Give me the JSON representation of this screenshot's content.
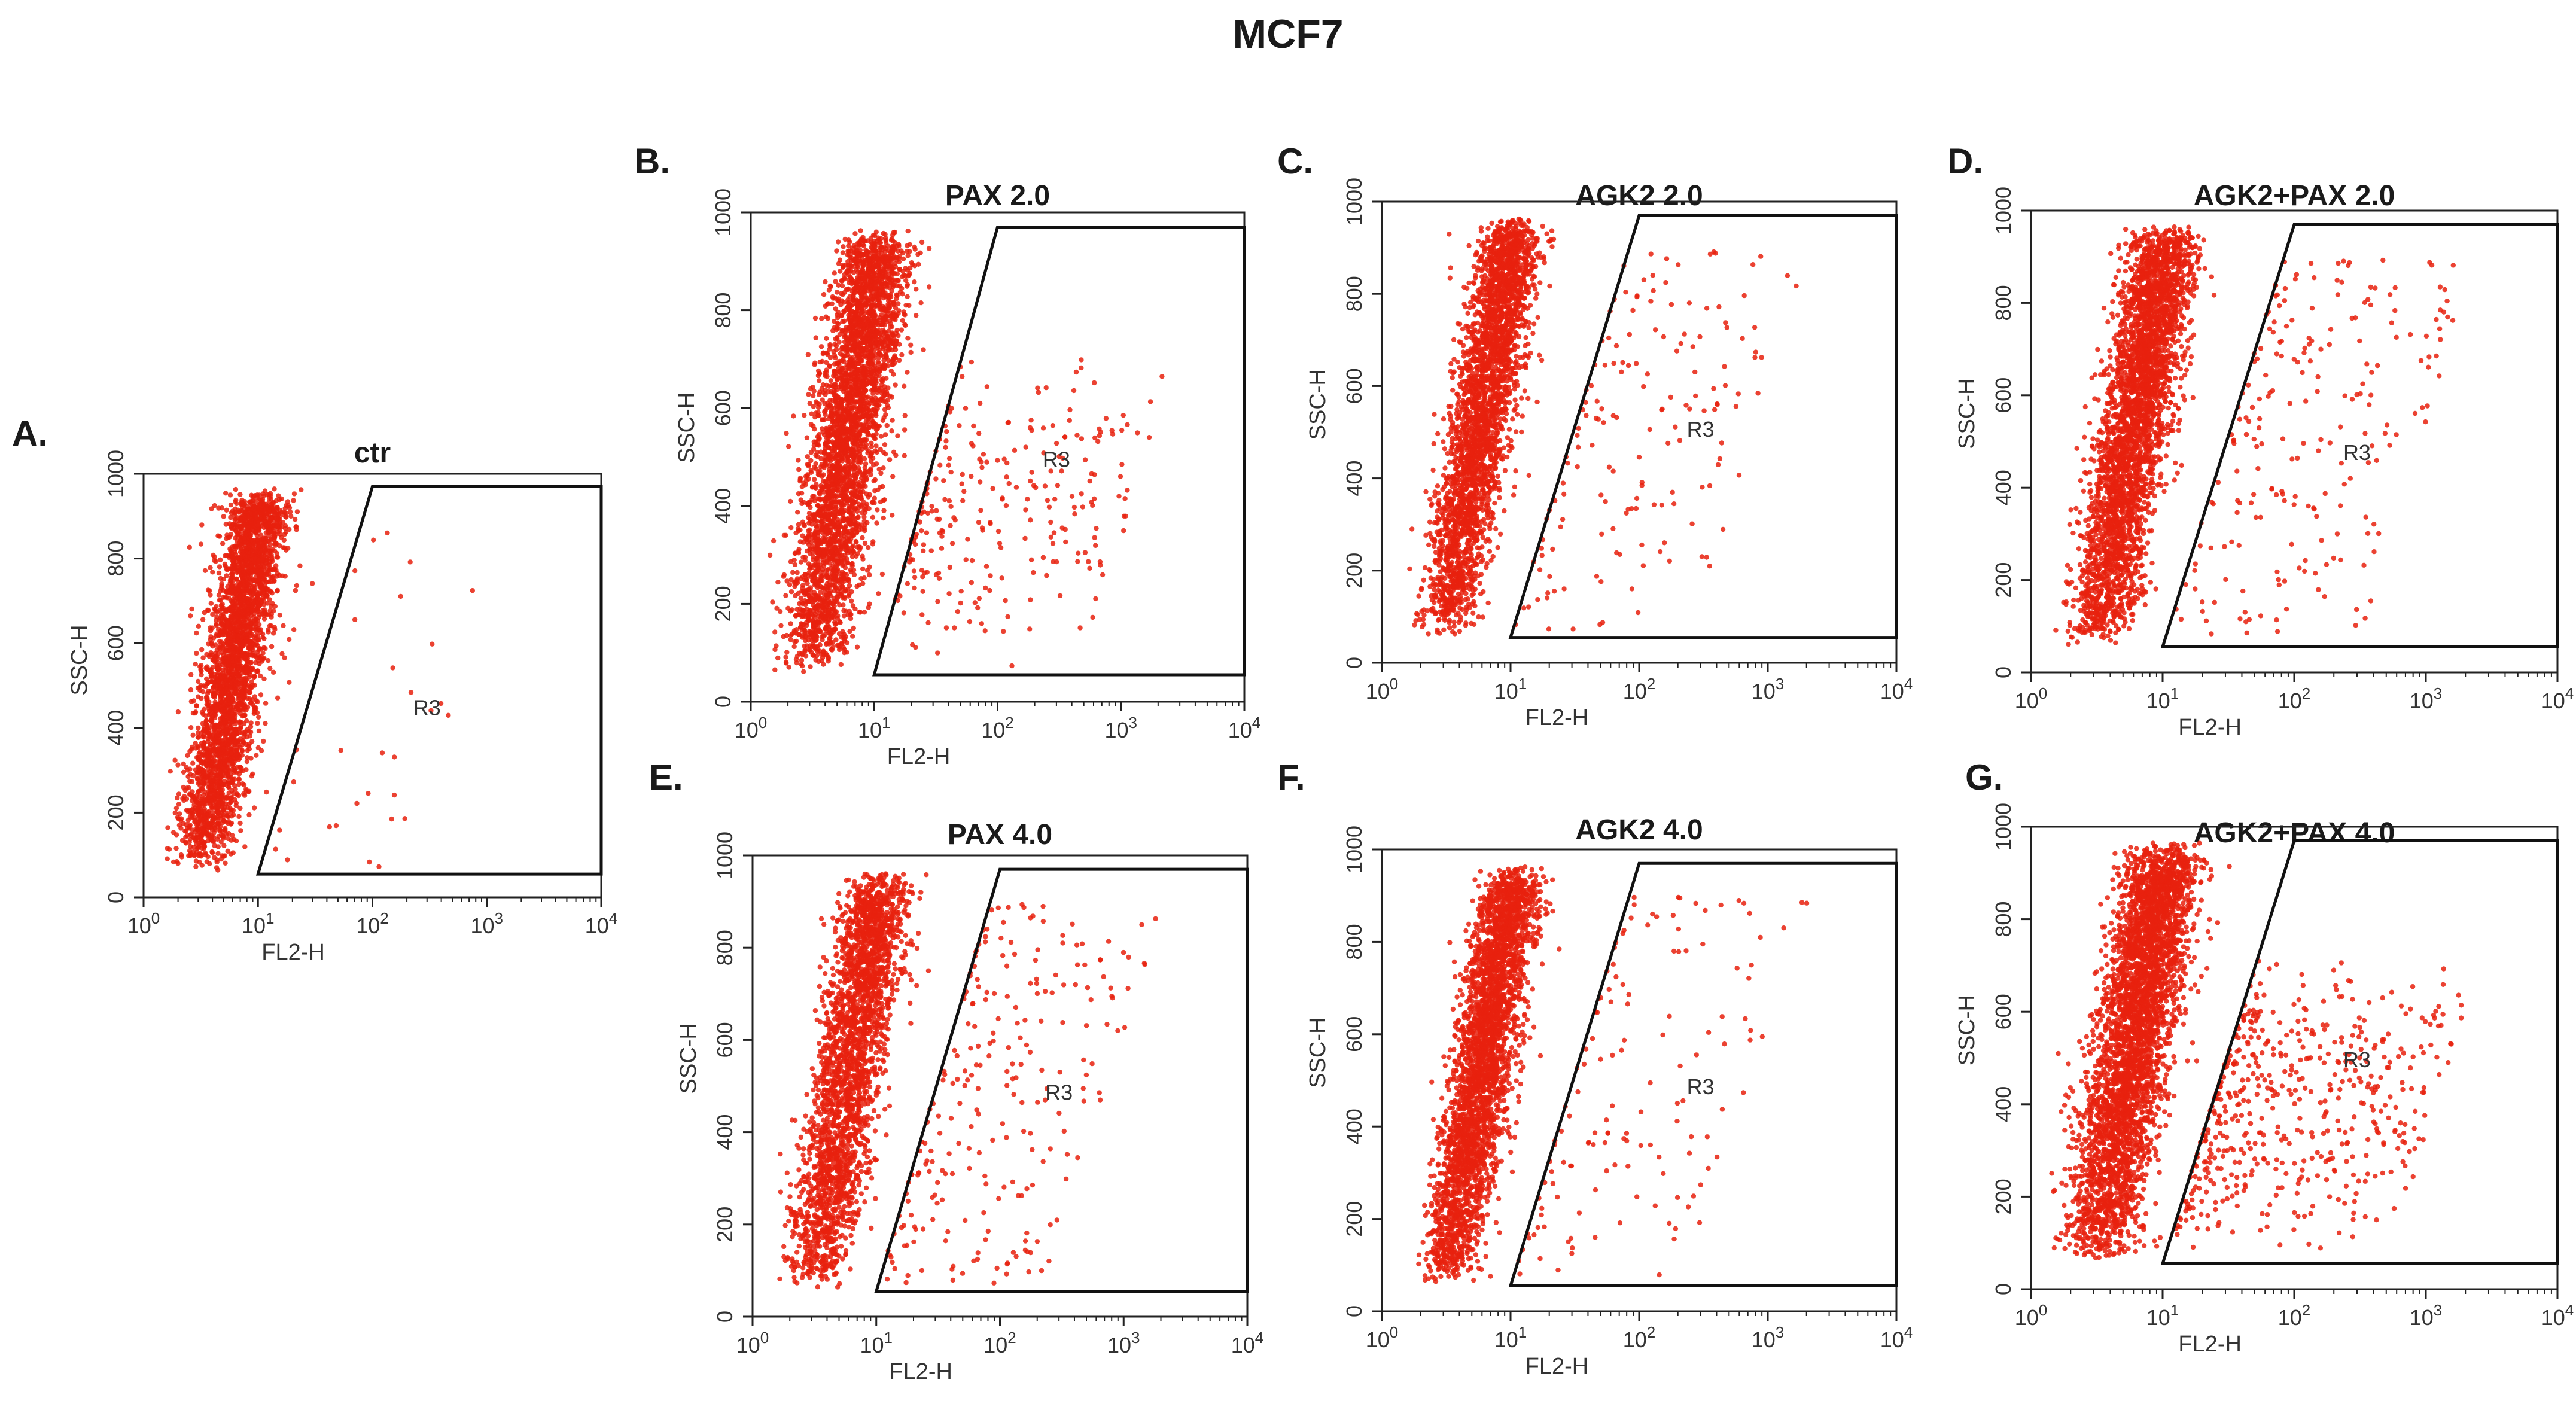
{
  "figure": {
    "title": "MCF7"
  },
  "chart_data": [
    {
      "id": "A",
      "letter": "A.",
      "type": "scatter",
      "title": "ctr",
      "xlabel": "FL2-H",
      "ylabel": "SSC-H",
      "xscale": "log",
      "xlim": [
        1,
        10000
      ],
      "ylim": [
        0,
        1000
      ],
      "xticks": [
        1,
        10,
        100,
        1000,
        10000
      ],
      "xtick_labels": [
        "10^0",
        "10^1",
        "10^2",
        "10^3",
        "10^4"
      ],
      "yticks": [
        0,
        200,
        400,
        600,
        800,
        1000
      ],
      "ytick_labels": [
        "0",
        "200",
        "400",
        "600",
        "800",
        "1000"
      ],
      "series_color": "#e8210e",
      "points_main": 3200,
      "points_gate": 30,
      "spread": 1.0,
      "tail": 0.0,
      "gate": {
        "label": "R3",
        "label_at": [
          300,
          430
        ],
        "vertices": [
          [
            10,
            55
          ],
          [
            100,
            970
          ],
          [
            10000,
            970
          ],
          [
            10000,
            55
          ]
        ]
      }
    },
    {
      "id": "B",
      "letter": "B.",
      "type": "scatter",
      "title": "PAX 2.0",
      "xlabel": "FL2-H",
      "ylabel": "SSC-H",
      "xscale": "log",
      "xlim": [
        1,
        10000
      ],
      "ylim": [
        0,
        1000
      ],
      "xticks": [
        1,
        10,
        100,
        1000,
        10000
      ],
      "xtick_labels": [
        "10^0",
        "10^1",
        "10^2",
        "10^3",
        "10^4"
      ],
      "yticks": [
        0,
        200,
        400,
        600,
        800,
        1000
      ],
      "ytick_labels": [
        "0",
        "200",
        "400",
        "600",
        "800",
        "1000"
      ],
      "series_color": "#e8210e",
      "points_main": 3600,
      "points_gate": 260,
      "spread": 1.1,
      "tail": 0.4,
      "gate": {
        "label": "R3",
        "label_at": [
          300,
          480
        ],
        "vertices": [
          [
            10,
            55
          ],
          [
            100,
            970
          ],
          [
            10000,
            970
          ],
          [
            10000,
            55
          ]
        ]
      }
    },
    {
      "id": "C",
      "letter": "C.",
      "type": "scatter",
      "title": "AGK2 2.0",
      "xlabel": "FL2-H",
      "ylabel": "SSC-H",
      "xscale": "log",
      "xlim": [
        1,
        10000
      ],
      "ylim": [
        0,
        1000
      ],
      "xticks": [
        1,
        10,
        100,
        1000,
        10000
      ],
      "xtick_labels": [
        "10^0",
        "10^1",
        "10^2",
        "10^3",
        "10^4"
      ],
      "yticks": [
        0,
        200,
        400,
        600,
        800,
        1000
      ],
      "ytick_labels": [
        "0",
        "200",
        "400",
        "600",
        "800",
        "1000"
      ],
      "series_color": "#e8210e",
      "points_main": 3000,
      "points_gate": 160,
      "spread": 0.9,
      "tail": 0.1,
      "gate": {
        "label": "R3",
        "label_at": [
          300,
          490
        ],
        "vertices": [
          [
            10,
            55
          ],
          [
            100,
            970
          ],
          [
            10000,
            970
          ],
          [
            10000,
            55
          ]
        ]
      }
    },
    {
      "id": "D",
      "letter": "D.",
      "type": "scatter",
      "title": "AGK2+PAX 2.0",
      "xlabel": "FL2-H",
      "ylabel": "SSC-H",
      "xscale": "log",
      "xlim": [
        1,
        10000
      ],
      "ylim": [
        0,
        1000
      ],
      "xticks": [
        1,
        10,
        100,
        1000,
        10000
      ],
      "xtick_labels": [
        "10^0",
        "10^1",
        "10^2",
        "10^3",
        "10^4"
      ],
      "yticks": [
        0,
        200,
        400,
        600,
        800,
        1000
      ],
      "ytick_labels": [
        "0",
        "200",
        "400",
        "600",
        "800",
        "1000"
      ],
      "series_color": "#e8210e",
      "points_main": 3400,
      "points_gate": 220,
      "spread": 1.0,
      "tail": 0.2,
      "gate": {
        "label": "R3",
        "label_at": [
          300,
          460
        ],
        "vertices": [
          [
            10,
            55
          ],
          [
            100,
            970
          ],
          [
            10000,
            970
          ],
          [
            10000,
            55
          ]
        ]
      }
    },
    {
      "id": "E",
      "letter": "E.",
      "type": "scatter",
      "title": "PAX 4.0",
      "xlabel": "FL2-H",
      "ylabel": "SSC-H",
      "xscale": "log",
      "xlim": [
        1,
        10000
      ],
      "ylim": [
        0,
        1000
      ],
      "xticks": [
        1,
        10,
        100,
        1000,
        10000
      ],
      "xtick_labels": [
        "10^0",
        "10^1",
        "10^2",
        "10^3",
        "10^4"
      ],
      "yticks": [
        0,
        200,
        400,
        600,
        800,
        1000
      ],
      "ytick_labels": [
        "0",
        "200",
        "400",
        "600",
        "800",
        "1000"
      ],
      "series_color": "#e8210e",
      "points_main": 2600,
      "points_gate": 240,
      "spread": 1.0,
      "tail": 0.1,
      "gate": {
        "label": "R3",
        "label_at": [
          300,
          470
        ],
        "vertices": [
          [
            10,
            55
          ],
          [
            100,
            970
          ],
          [
            10000,
            970
          ],
          [
            10000,
            55
          ]
        ]
      }
    },
    {
      "id": "F",
      "letter": "F.",
      "type": "scatter",
      "title": "AGK2 4.0",
      "xlabel": "FL2-H",
      "ylabel": "SSC-H",
      "xscale": "log",
      "xlim": [
        1,
        10000
      ],
      "ylim": [
        0,
        1000
      ],
      "xticks": [
        1,
        10,
        100,
        1000,
        10000
      ],
      "xtick_labels": [
        "10^0",
        "10^1",
        "10^2",
        "10^3",
        "10^4"
      ],
      "yticks": [
        0,
        200,
        400,
        600,
        800,
        1000
      ],
      "ytick_labels": [
        "0",
        "200",
        "400",
        "600",
        "800",
        "1000"
      ],
      "series_color": "#e8210e",
      "points_main": 3200,
      "points_gate": 140,
      "spread": 0.9,
      "tail": 0.1,
      "gate": {
        "label": "R3",
        "label_at": [
          300,
          470
        ],
        "vertices": [
          [
            10,
            55
          ],
          [
            100,
            970
          ],
          [
            10000,
            970
          ],
          [
            10000,
            55
          ]
        ]
      }
    },
    {
      "id": "G",
      "letter": "G.",
      "type": "scatter",
      "title": "AGK2+PAX 4.0",
      "xlabel": "FL2-H",
      "ylabel": "SSC-H",
      "xscale": "log",
      "xlim": [
        1,
        10000
      ],
      "ylim": [
        0,
        1000
      ],
      "xticks": [
        1,
        10,
        100,
        1000,
        10000
      ],
      "xtick_labels": [
        "10^0",
        "10^1",
        "10^2",
        "10^3",
        "10^4"
      ],
      "yticks": [
        0,
        200,
        400,
        600,
        800,
        1000
      ],
      "ytick_labels": [
        "0",
        "200",
        "400",
        "600",
        "800",
        "1000"
      ],
      "series_color": "#e8210e",
      "points_main": 3800,
      "points_gate": 520,
      "spread": 1.1,
      "tail": 0.4,
      "gate": {
        "label": "R3",
        "label_at": [
          300,
          480
        ],
        "vertices": [
          [
            10,
            55
          ],
          [
            100,
            970
          ],
          [
            10000,
            970
          ],
          [
            10000,
            55
          ]
        ]
      }
    }
  ]
}
